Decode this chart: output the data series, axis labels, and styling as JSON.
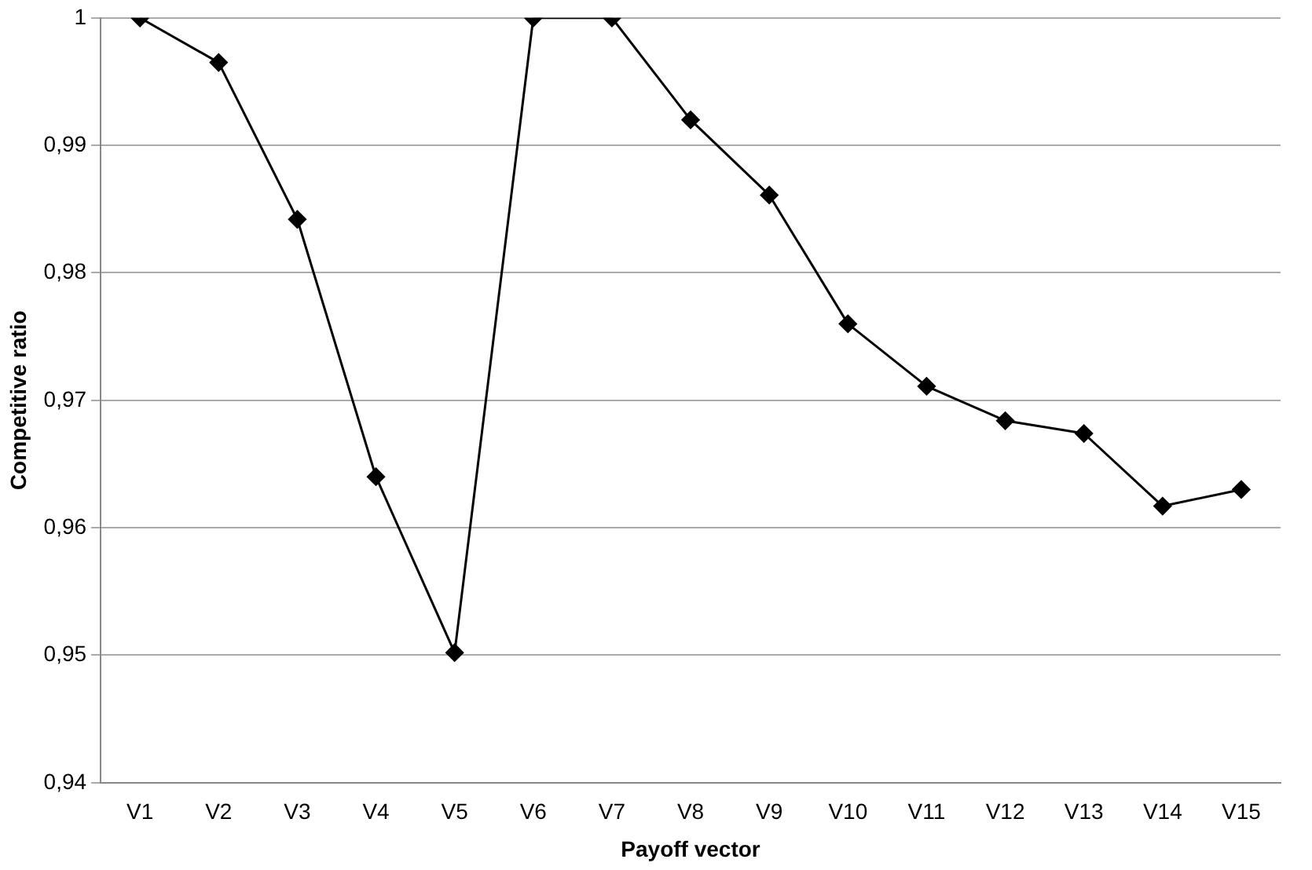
{
  "chart_data": {
    "type": "line",
    "xlabel": "Payoff vector",
    "ylabel": "Competitive ratio",
    "categories": [
      "V1",
      "V2",
      "V3",
      "V4",
      "V5",
      "V6",
      "V7",
      "V8",
      "V9",
      "V10",
      "V11",
      "V12",
      "V13",
      "V14",
      "V15"
    ],
    "series": [
      {
        "color": "#000000",
        "values": [
          1,
          0.9965,
          0.9842,
          0.964,
          0.9502,
          1,
          1,
          0.992,
          0.9861,
          0.976,
          0.9711,
          0.9684,
          0.9674,
          0.9617,
          0.963
        ]
      }
    ],
    "ylim": [
      0.94,
      1
    ],
    "yticks": [
      {
        "value": 0.94,
        "label": "0,94"
      },
      {
        "value": 0.95,
        "label": "0,95"
      },
      {
        "value": 0.96,
        "label": "0,96"
      },
      {
        "value": 0.97,
        "label": "0,97"
      },
      {
        "value": 0.98,
        "label": "0,98"
      },
      {
        "value": 0.99,
        "label": "0,99"
      },
      {
        "value": 1,
        "label": "1"
      }
    ],
    "grid": "y",
    "legend": false,
    "marker": "diamond",
    "line_style": "solid"
  }
}
